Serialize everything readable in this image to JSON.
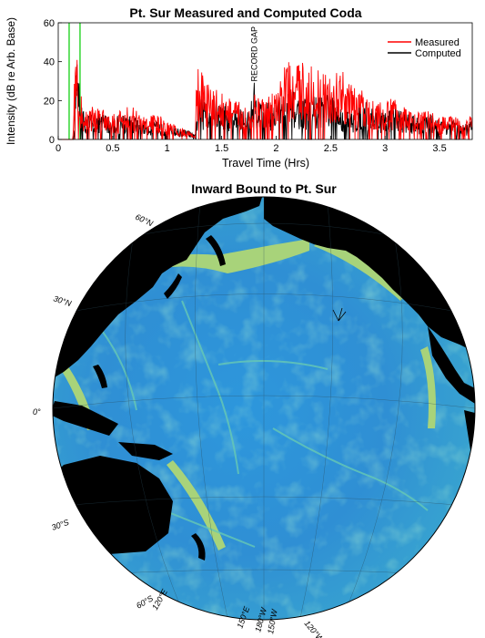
{
  "chart_data": {
    "type": "line",
    "title": "Pt. Sur Measured and Computed Coda",
    "xlabel": "Travel Time (Hrs)",
    "ylabel": "Intensity (dB re Arb. Base)",
    "xlim": [
      0,
      3.8
    ],
    "ylim": [
      0,
      60
    ],
    "xticks": [
      "0",
      "0.5",
      "1",
      "1.5",
      "2",
      "2.5",
      "3",
      "3.5"
    ],
    "yticks": [
      "0",
      "20",
      "40",
      "60"
    ],
    "legend_position": "top-right",
    "grid": false,
    "markers": [
      0.1,
      0.2
    ],
    "annotations": [
      {
        "text": "RECORD GAP",
        "x": 1.8
      }
    ],
    "series": [
      {
        "name": "Measured",
        "color": "#ff0000",
        "envelope": [
          [
            0.0,
            0
          ],
          [
            0.13,
            0
          ],
          [
            0.16,
            44
          ],
          [
            0.19,
            28
          ],
          [
            0.23,
            12
          ],
          [
            0.28,
            14
          ],
          [
            0.35,
            16
          ],
          [
            0.45,
            14
          ],
          [
            0.55,
            12
          ],
          [
            0.62,
            18
          ],
          [
            0.7,
            14
          ],
          [
            0.8,
            10
          ],
          [
            0.9,
            12
          ],
          [
            1.0,
            8
          ],
          [
            1.1,
            6
          ],
          [
            1.2,
            4
          ],
          [
            1.26,
            2
          ],
          [
            1.27,
            39
          ],
          [
            1.33,
            28
          ],
          [
            1.4,
            24
          ],
          [
            1.5,
            22
          ],
          [
            1.6,
            18
          ],
          [
            1.7,
            16
          ],
          [
            1.78,
            14
          ],
          [
            1.8,
            26
          ],
          [
            1.83,
            22
          ],
          [
            1.9,
            18
          ],
          [
            2.0,
            22
          ],
          [
            2.05,
            30
          ],
          [
            2.1,
            36
          ],
          [
            2.17,
            30
          ],
          [
            2.22,
            38
          ],
          [
            2.28,
            32
          ],
          [
            2.35,
            40
          ],
          [
            2.4,
            30
          ],
          [
            2.5,
            28
          ],
          [
            2.6,
            32
          ],
          [
            2.7,
            24
          ],
          [
            2.8,
            22
          ],
          [
            2.9,
            18
          ],
          [
            3.0,
            16
          ],
          [
            3.1,
            20
          ],
          [
            3.2,
            14
          ],
          [
            3.3,
            12
          ],
          [
            3.4,
            14
          ],
          [
            3.5,
            10
          ],
          [
            3.6,
            12
          ],
          [
            3.7,
            8
          ],
          [
            3.8,
            12
          ]
        ]
      },
      {
        "name": "Computed",
        "color": "#000000",
        "envelope": [
          [
            0.0,
            0
          ],
          [
            0.14,
            0
          ],
          [
            0.17,
            38
          ],
          [
            0.2,
            26
          ],
          [
            0.24,
            10
          ],
          [
            0.3,
            12
          ],
          [
            0.4,
            12
          ],
          [
            0.5,
            10
          ],
          [
            0.6,
            12
          ],
          [
            0.7,
            10
          ],
          [
            0.8,
            8
          ],
          [
            0.9,
            8
          ],
          [
            1.0,
            6
          ],
          [
            1.1,
            5
          ],
          [
            1.2,
            4
          ],
          [
            1.26,
            2
          ],
          [
            1.28,
            18
          ],
          [
            1.35,
            20
          ],
          [
            1.45,
            18
          ],
          [
            1.55,
            17
          ],
          [
            1.65,
            14
          ],
          [
            1.75,
            13
          ],
          [
            1.8,
            26
          ],
          [
            1.85,
            18
          ],
          [
            1.95,
            16
          ],
          [
            2.05,
            20
          ],
          [
            2.15,
            22
          ],
          [
            2.25,
            18
          ],
          [
            2.35,
            20
          ],
          [
            2.45,
            24
          ],
          [
            2.5,
            20
          ],
          [
            2.6,
            14
          ],
          [
            2.7,
            12
          ],
          [
            2.8,
            18
          ],
          [
            2.9,
            14
          ],
          [
            3.0,
            12
          ],
          [
            3.1,
            16
          ],
          [
            3.2,
            12
          ],
          [
            3.3,
            10
          ],
          [
            3.4,
            12
          ],
          [
            3.5,
            8
          ],
          [
            3.6,
            10
          ],
          [
            3.7,
            6
          ],
          [
            3.8,
            10
          ]
        ]
      }
    ]
  },
  "map": {
    "title": "Inward Bound to Pt. Sur",
    "lat_labels": [
      "60°N",
      "30°N",
      "0°",
      "30°S",
      "60°S"
    ],
    "lon_labels": [
      "120°E",
      "150°E",
      "180°W",
      "150°W",
      "120°W"
    ],
    "colors": {
      "land": "#000000",
      "deep_ocean": "#2b8fd8",
      "mid_ocean": "#34b3d6",
      "shelf": "#a8d37a",
      "ridge": "#5fc9b8"
    }
  }
}
